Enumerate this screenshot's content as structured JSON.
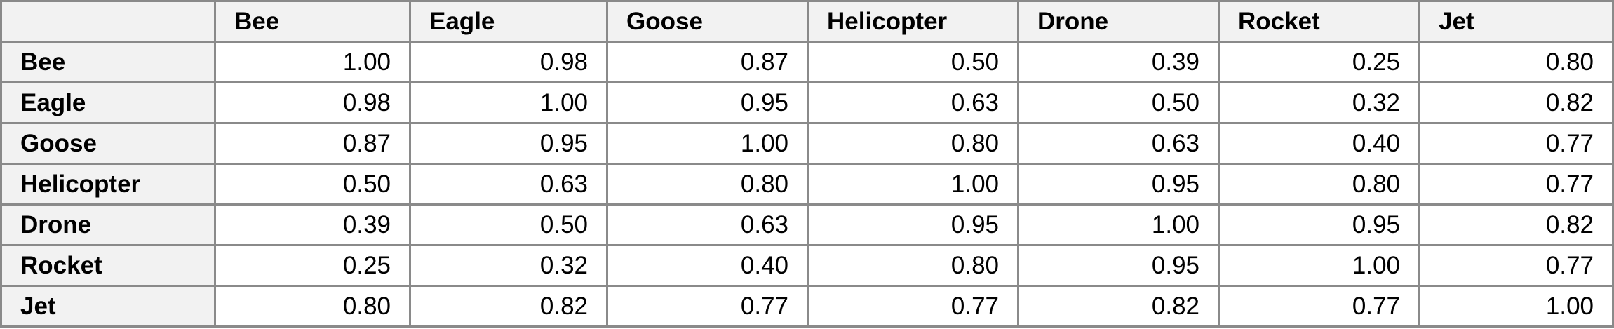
{
  "table": {
    "header": [
      "Bee",
      "Eagle",
      "Goose",
      "Helicopter",
      "Drone",
      "Rocket",
      "Jet"
    ],
    "rows": [
      [
        "Bee",
        "1.00",
        "0.98",
        "0.87",
        "0.50",
        "0.39",
        "0.25",
        "0.80"
      ],
      [
        "Eagle",
        "0.98",
        "1.00",
        "0.95",
        "0.63",
        "0.50",
        "0.32",
        "0.82"
      ],
      [
        "Goose",
        "0.87",
        "0.95",
        "1.00",
        "0.80",
        "0.63",
        "0.40",
        "0.77"
      ],
      [
        "Helicopter",
        "0.50",
        "0.63",
        "0.80",
        "1.00",
        "0.95",
        "0.80",
        "0.77"
      ],
      [
        "Drone",
        "0.39",
        "0.50",
        "0.63",
        "0.95",
        "1.00",
        "0.95",
        "0.82"
      ],
      [
        "Rocket",
        "0.25",
        "0.32",
        "0.40",
        "0.80",
        "0.95",
        "1.00",
        "0.77"
      ],
      [
        "Jet",
        "0.80",
        "0.82",
        "0.77",
        "0.77",
        "0.82",
        "0.77",
        "1.00"
      ]
    ]
  }
}
